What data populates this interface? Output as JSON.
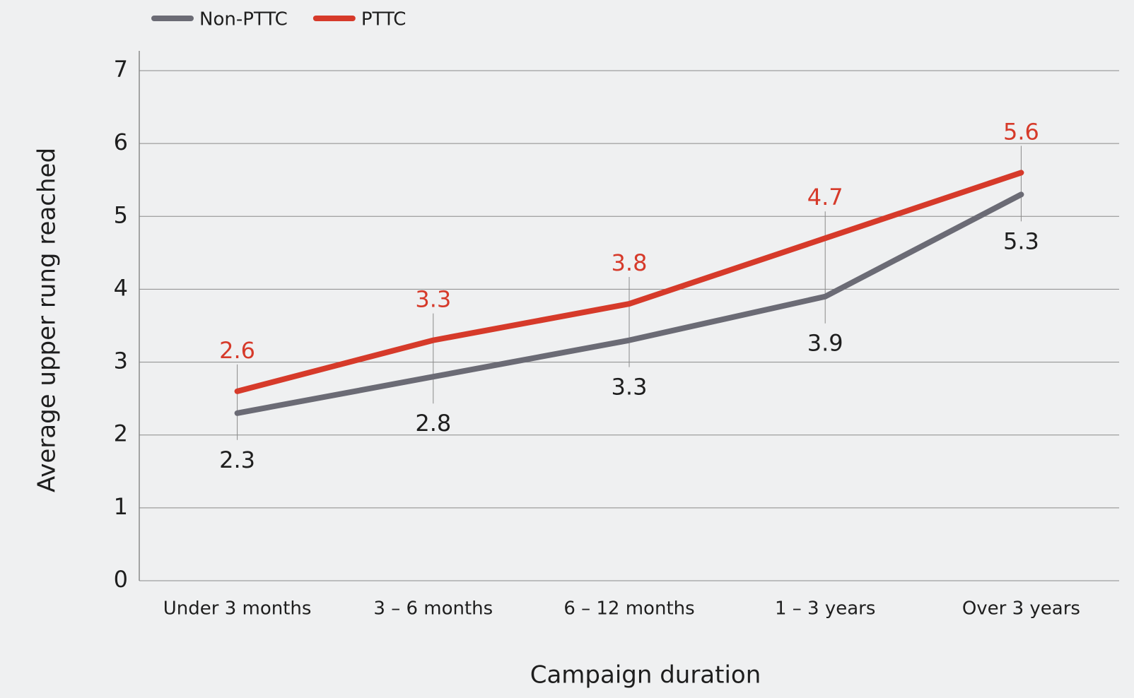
{
  "chart_data": {
    "type": "line",
    "x_label": "Campaign duration",
    "y_label": "Average upper rung reached",
    "categories": [
      "Under 3 months",
      "3 – 6 months",
      "6 – 12 months",
      "1 – 3 years",
      "Over 3 years"
    ],
    "series": [
      {
        "name": "Non-PTTC",
        "color": "#6b6b75",
        "values": [
          2.3,
          2.8,
          3.3,
          3.9,
          5.3
        ]
      },
      {
        "name": "PTTC",
        "color": "#d63a2a",
        "values": [
          2.6,
          3.3,
          3.8,
          4.7,
          5.6
        ]
      }
    ],
    "ylim": [
      0,
      7
    ],
    "yticks": [
      0,
      1,
      2,
      3,
      4,
      5,
      6,
      7
    ],
    "grid": true,
    "legend": "top-left"
  }
}
